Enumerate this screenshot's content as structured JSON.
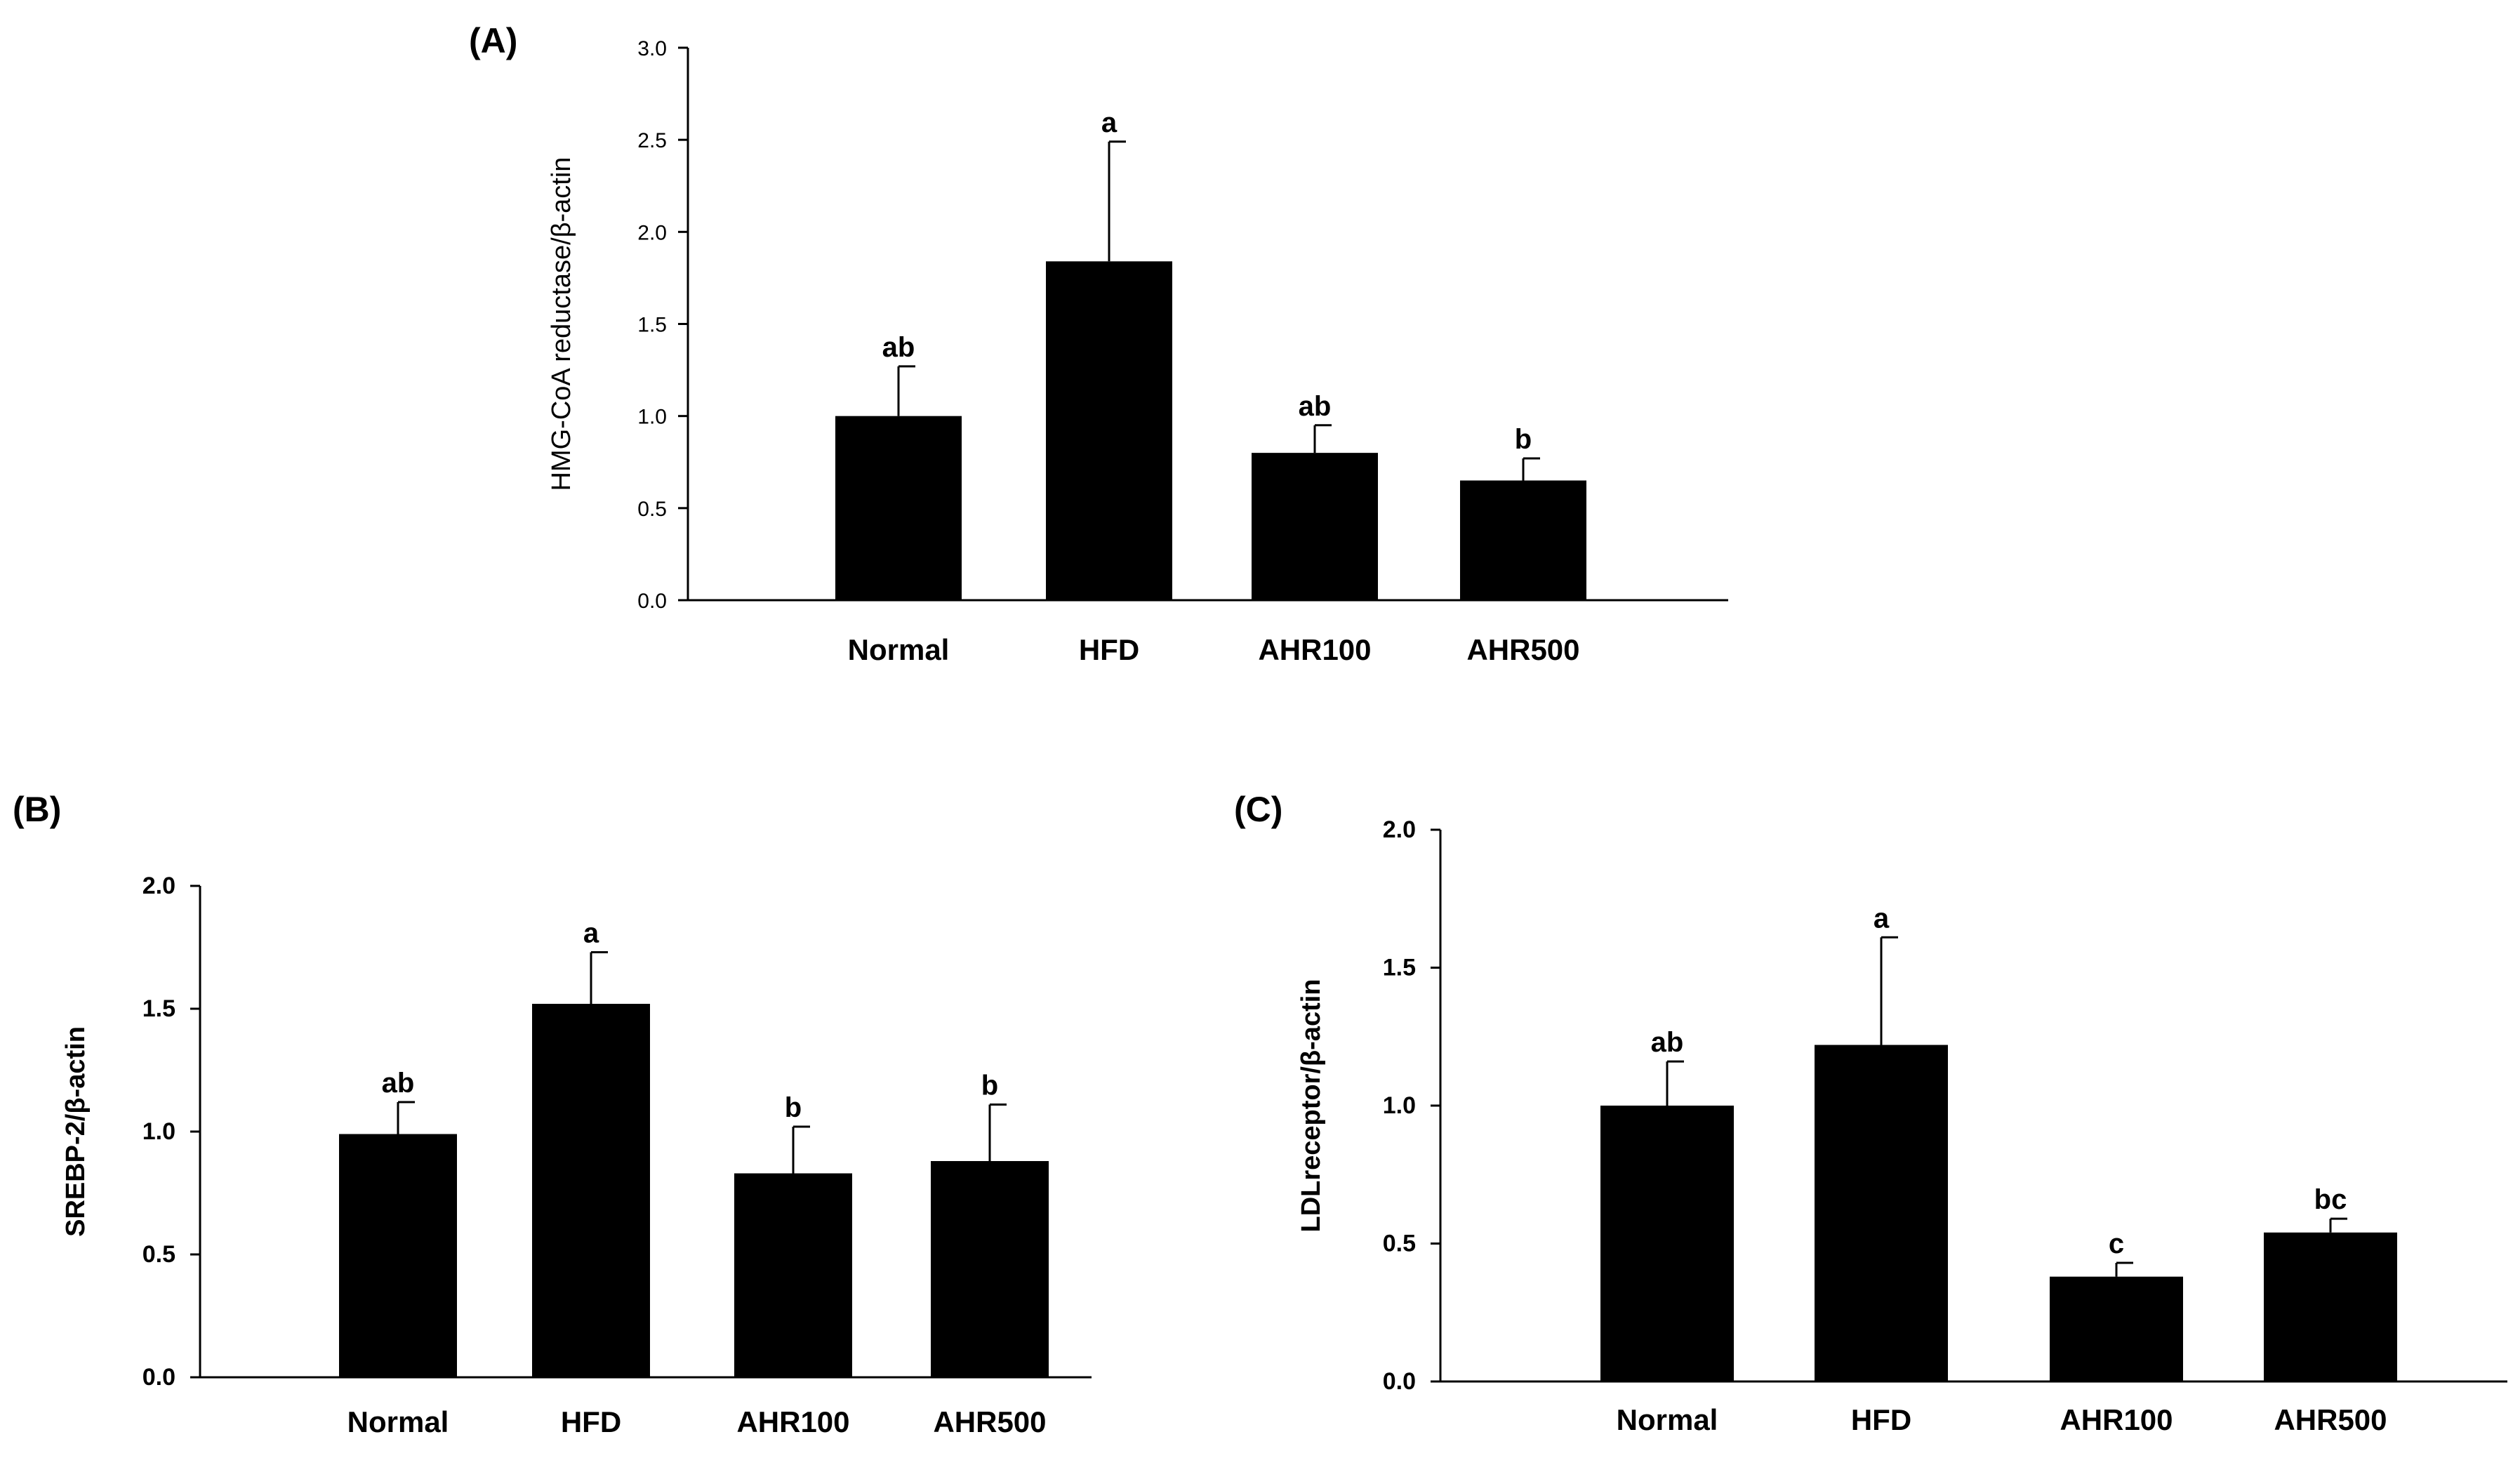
{
  "chart_data": [
    {
      "type": "bar",
      "panel_label": "(A)",
      "ylabel": "HMG-CoA reductase/β-actin",
      "categories": [
        "Normal",
        "HFD",
        "AHR100",
        "AHR500"
      ],
      "values": [
        1.0,
        1.84,
        0.8,
        0.65
      ],
      "errors": [
        0.27,
        0.65,
        0.15,
        0.12
      ],
      "significance": [
        "ab",
        "a",
        "ab",
        "b"
      ],
      "ylim": [
        0,
        3.0
      ],
      "yticks": [
        "0.0",
        "0.5",
        "1.0",
        "1.5",
        "2.0",
        "2.5",
        "3.0"
      ],
      "grid": false
    },
    {
      "type": "bar",
      "panel_label": "(B)",
      "ylabel": "SREBP-2/β-actin",
      "categories": [
        "Normal",
        "HFD",
        "AHR100",
        "AHR500"
      ],
      "values": [
        0.99,
        1.52,
        0.83,
        0.88
      ],
      "errors": [
        0.13,
        0.21,
        0.19,
        0.23
      ],
      "significance": [
        "ab",
        "a",
        "b",
        "b"
      ],
      "ylim": [
        0,
        2.0
      ],
      "yticks": [
        "0.0",
        "0.5",
        "1.0",
        "1.5",
        "2.0"
      ],
      "grid": false
    },
    {
      "type": "bar",
      "panel_label": "(C)",
      "ylabel": "LDLreceptor/β-actin",
      "categories": [
        "Normal",
        "HFD",
        "AHR100",
        "AHR500"
      ],
      "values": [
        1.0,
        1.22,
        0.38,
        0.54
      ],
      "errors": [
        0.16,
        0.39,
        0.05,
        0.05
      ],
      "significance": [
        "ab",
        "a",
        "c",
        "bc"
      ],
      "ylim": [
        0,
        2.0
      ],
      "yticks": [
        "0.0",
        "0.5",
        "1.0",
        "1.5",
        "2.0"
      ],
      "grid": false
    }
  ],
  "colors": {
    "bar": "#000000",
    "axis": "#000000",
    "background": "#ffffff"
  }
}
